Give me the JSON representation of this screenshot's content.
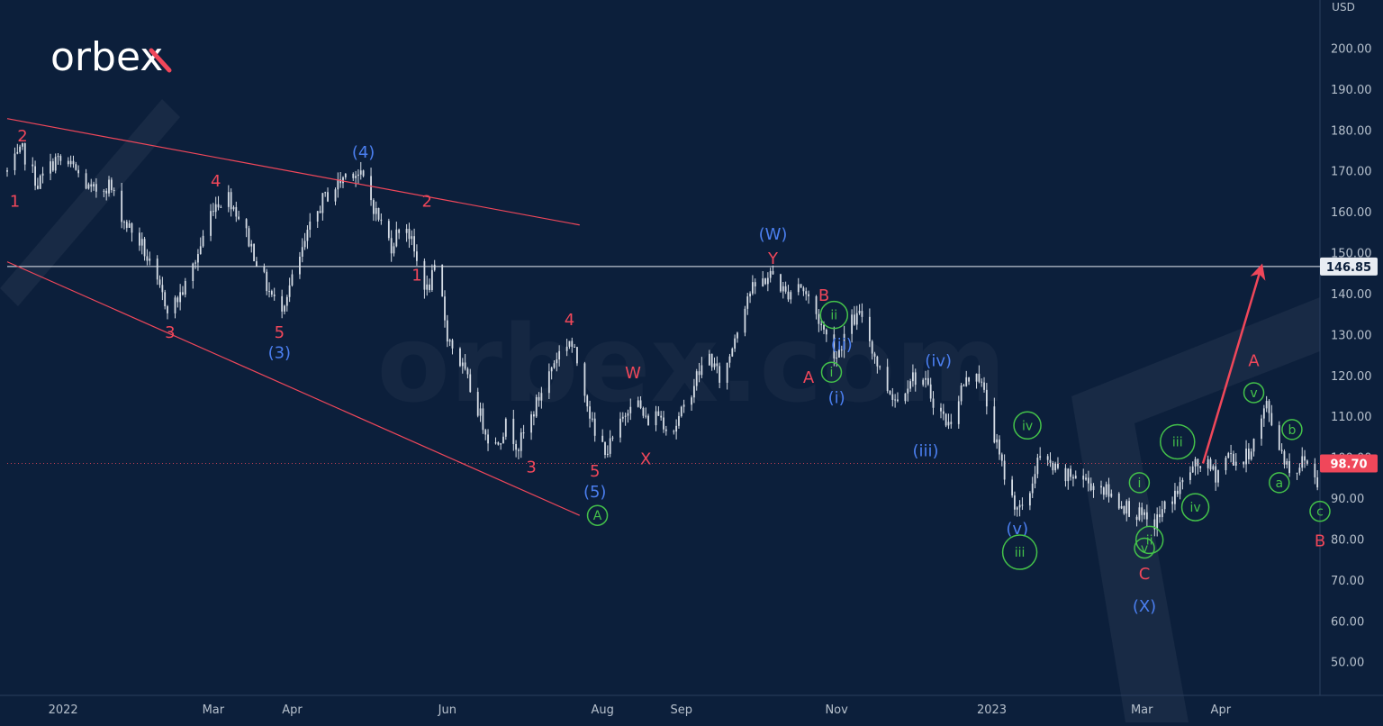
{
  "brand": {
    "logo_text": "orbex",
    "watermark_text": "orbex.com"
  },
  "colors": {
    "background": "#0c1f3b",
    "candle": "#d6dde6",
    "red": "#f0475a",
    "blue": "#4b7ff0",
    "green": "#44c24a",
    "axis_text": "#b6c0cc",
    "resistance": "#e8ecf2",
    "current_price_tag": "#f0475a",
    "resistance_tag": "#e8ecf2"
  },
  "chart_data": {
    "type": "candlestick",
    "currency": "USD",
    "y_axis": {
      "unit": "USD",
      "range": [
        42,
        212
      ],
      "ticks": [
        200,
        190,
        180,
        170,
        160,
        150,
        140,
        130,
        120,
        110,
        100,
        90,
        80,
        70,
        60,
        50
      ]
    },
    "x_axis": {
      "range": [
        "2021-12-10",
        "2023-05-10"
      ],
      "ticks": [
        {
          "date": "2022-01-01",
          "label": "2022"
        },
        {
          "date": "2022-03-01",
          "label": "Mar"
        },
        {
          "date": "2022-04-01",
          "label": "Apr"
        },
        {
          "date": "2022-06-01",
          "label": "Jun"
        },
        {
          "date": "2022-08-01",
          "label": "Aug"
        },
        {
          "date": "2022-09-01",
          "label": "Sep"
        },
        {
          "date": "2022-11-01",
          "label": "Nov"
        },
        {
          "date": "2023-01-01",
          "label": "2023"
        },
        {
          "date": "2023-03-01",
          "label": "Mar"
        },
        {
          "date": "2023-04-01",
          "label": "Apr"
        }
      ]
    },
    "current_price": {
      "value": 98.7,
      "label": "98.70"
    },
    "resistance_level": {
      "value": 146.85,
      "label": "146.85"
    },
    "price_path": [
      [
        "2021-12-10",
        170
      ],
      [
        "2021-12-16",
        175
      ],
      [
        "2021-12-22",
        167
      ],
      [
        "2021-12-29",
        173
      ],
      [
        "2022-01-05",
        171
      ],
      [
        "2022-01-12",
        165
      ],
      [
        "2022-01-19",
        167
      ],
      [
        "2022-01-25",
        158
      ],
      [
        "2022-02-01",
        152
      ],
      [
        "2022-02-07",
        142
      ],
      [
        "2022-02-12",
        136
      ],
      [
        "2022-02-18",
        142
      ],
      [
        "2022-02-23",
        150
      ],
      [
        "2022-03-01",
        162
      ],
      [
        "2022-03-07",
        164
      ],
      [
        "2022-03-12",
        158
      ],
      [
        "2022-03-17",
        150
      ],
      [
        "2022-03-22",
        142
      ],
      [
        "2022-03-27",
        136
      ],
      [
        "2022-04-02",
        145
      ],
      [
        "2022-04-08",
        156
      ],
      [
        "2022-04-13",
        163
      ],
      [
        "2022-04-19",
        167
      ],
      [
        "2022-04-24",
        171
      ],
      [
        "2022-04-29",
        168
      ],
      [
        "2022-05-04",
        160
      ],
      [
        "2022-05-10",
        152
      ],
      [
        "2022-05-15",
        159
      ],
      [
        "2022-05-20",
        148
      ],
      [
        "2022-05-24",
        141
      ],
      [
        "2022-05-28",
        147
      ],
      [
        "2022-06-01",
        130
      ],
      [
        "2022-06-07",
        122
      ],
      [
        "2022-06-13",
        112
      ],
      [
        "2022-06-19",
        102
      ],
      [
        "2022-06-24",
        108
      ],
      [
        "2022-06-29",
        103
      ],
      [
        "2022-07-04",
        110
      ],
      [
        "2022-07-09",
        118
      ],
      [
        "2022-07-14",
        125
      ],
      [
        "2022-07-19",
        129
      ],
      [
        "2022-07-24",
        120
      ],
      [
        "2022-07-29",
        105
      ],
      [
        "2022-08-03",
        102
      ],
      [
        "2022-08-08",
        108
      ],
      [
        "2022-08-13",
        116
      ],
      [
        "2022-08-18",
        109
      ],
      [
        "2022-08-23",
        111
      ],
      [
        "2022-08-28",
        106
      ],
      [
        "2022-09-02",
        112
      ],
      [
        "2022-09-07",
        120
      ],
      [
        "2022-09-12",
        125
      ],
      [
        "2022-09-17",
        118
      ],
      [
        "2022-09-22",
        130
      ],
      [
        "2022-09-27",
        140
      ],
      [
        "2022-10-02",
        143
      ],
      [
        "2022-10-07",
        145
      ],
      [
        "2022-10-12",
        140
      ],
      [
        "2022-10-17",
        143
      ],
      [
        "2022-10-22",
        138
      ],
      [
        "2022-10-27",
        131
      ],
      [
        "2022-11-01",
        125
      ],
      [
        "2022-11-06",
        133
      ],
      [
        "2022-11-11",
        135
      ],
      [
        "2022-11-16",
        125
      ],
      [
        "2022-11-20",
        118
      ],
      [
        "2022-11-25",
        114
      ],
      [
        "2022-11-30",
        120
      ],
      [
        "2022-12-05",
        119
      ],
      [
        "2022-12-10",
        113
      ],
      [
        "2022-12-15",
        108
      ],
      [
        "2022-12-20",
        117
      ],
      [
        "2022-12-26",
        122
      ],
      [
        "2022-12-31",
        111
      ],
      [
        "2023-01-04",
        100
      ],
      [
        "2023-01-09",
        90
      ],
      [
        "2023-01-14",
        86
      ],
      [
        "2023-01-19",
        100
      ],
      [
        "2023-01-24",
        98
      ],
      [
        "2023-01-29",
        95
      ],
      [
        "2023-02-03",
        96
      ],
      [
        "2023-02-08",
        94
      ],
      [
        "2023-02-13",
        93
      ],
      [
        "2023-02-18",
        90
      ],
      [
        "2023-02-23",
        88
      ],
      [
        "2023-02-28",
        86
      ],
      [
        "2023-03-05",
        83
      ],
      [
        "2023-03-10",
        88
      ],
      [
        "2023-03-15",
        92
      ],
      [
        "2023-03-20",
        97
      ],
      [
        "2023-03-25",
        99
      ],
      [
        "2023-03-30",
        96
      ],
      [
        "2023-04-04",
        101
      ],
      [
        "2023-04-09",
        98
      ],
      [
        "2023-04-14",
        104
      ],
      [
        "2023-04-19",
        113
      ],
      [
        "2023-04-24",
        103
      ],
      [
        "2023-04-29",
        96
      ],
      [
        "2023-05-04",
        100
      ],
      [
        "2023-05-09",
        94
      ]
    ],
    "trendlines": [
      {
        "name": "upper-wedge-line",
        "from": [
          "2021-12-10",
          183
        ],
        "to": [
          "2022-07-23",
          157
        ]
      },
      {
        "name": "lower-wedge-line",
        "from": [
          "2021-12-10",
          148
        ],
        "to": [
          "2022-07-23",
          86
        ]
      },
      {
        "name": "forecast-arrow",
        "from": [
          "2023-03-25",
          98.7
        ],
        "to": [
          "2023-04-17",
          146.85
        ],
        "arrow": true
      }
    ],
    "annotations": [
      {
        "text": "2",
        "x": "2021-12-16",
        "y": 179,
        "color": "red"
      },
      {
        "text": "1",
        "x": "2021-12-13",
        "y": 163,
        "color": "red"
      },
      {
        "text": "4",
        "x": "2022-03-02",
        "y": 168,
        "color": "red"
      },
      {
        "text": "3",
        "x": "2022-02-12",
        "y": 131,
        "color": "red"
      },
      {
        "text": "5",
        "x": "2022-03-27",
        "y": 131,
        "color": "red"
      },
      {
        "text": "(3)",
        "x": "2022-03-27",
        "y": 126,
        "color": "blue"
      },
      {
        "text": "(4)",
        "x": "2022-04-29",
        "y": 175,
        "color": "blue"
      },
      {
        "text": "2",
        "x": "2022-05-24",
        "y": 163,
        "color": "red"
      },
      {
        "text": "1",
        "x": "2022-05-20",
        "y": 145,
        "color": "red"
      },
      {
        "text": "4",
        "x": "2022-07-19",
        "y": 134,
        "color": "red"
      },
      {
        "text": "3",
        "x": "2022-07-04",
        "y": 98,
        "color": "red"
      },
      {
        "text": "5",
        "x": "2022-07-29",
        "y": 97,
        "color": "red"
      },
      {
        "text": "(5)",
        "x": "2022-07-29",
        "y": 92,
        "color": "blue"
      },
      {
        "text": "A",
        "x": "2022-07-30",
        "y": 86,
        "color": "green",
        "circled": true
      },
      {
        "text": "W",
        "x": "2022-08-13",
        "y": 121,
        "color": "red"
      },
      {
        "text": "X",
        "x": "2022-08-18",
        "y": 100,
        "color": "red"
      },
      {
        "text": "(W)",
        "x": "2022-10-07",
        "y": 155,
        "color": "blue"
      },
      {
        "text": "Y",
        "x": "2022-10-07",
        "y": 149,
        "color": "red"
      },
      {
        "text": "B",
        "x": "2022-10-27",
        "y": 140,
        "color": "red"
      },
      {
        "text": "ii",
        "x": "2022-10-31",
        "y": 135,
        "color": "green",
        "circled": true
      },
      {
        "text": "(ii)",
        "x": "2022-11-03",
        "y": 128,
        "color": "blue"
      },
      {
        "text": "i",
        "x": "2022-10-30",
        "y": 121,
        "color": "green",
        "circled": true
      },
      {
        "text": "A",
        "x": "2022-10-21",
        "y": 120,
        "color": "red"
      },
      {
        "text": "(i)",
        "x": "2022-11-01",
        "y": 115,
        "color": "blue"
      },
      {
        "text": "(iv)",
        "x": "2022-12-11",
        "y": 124,
        "color": "blue"
      },
      {
        "text": "(iii)",
        "x": "2022-12-06",
        "y": 102,
        "color": "blue"
      },
      {
        "text": "iv",
        "x": "2023-01-15",
        "y": 108,
        "color": "green",
        "circled": true
      },
      {
        "text": "(v)",
        "x": "2023-01-11",
        "y": 83,
        "color": "blue"
      },
      {
        "text": "iii",
        "x": "2023-01-12",
        "y": 77,
        "color": "green",
        "circled": true
      },
      {
        "text": "i",
        "x": "2023-02-28",
        "y": 94,
        "color": "green",
        "circled": true
      },
      {
        "text": "ii",
        "x": "2023-03-04",
        "y": 80,
        "color": "green",
        "circled": true
      },
      {
        "text": "v",
        "x": "2023-03-02",
        "y": 78,
        "color": "green",
        "circled": true
      },
      {
        "text": "C",
        "x": "2023-03-02",
        "y": 72,
        "color": "red"
      },
      {
        "text": "(X)",
        "x": "2023-03-02",
        "y": 64,
        "color": "blue"
      },
      {
        "text": "iii",
        "x": "2023-03-15",
        "y": 104,
        "color": "green",
        "circled": true
      },
      {
        "text": "iv",
        "x": "2023-03-22",
        "y": 88,
        "color": "green",
        "circled": true
      },
      {
        "text": "A",
        "x": "2023-04-14",
        "y": 124,
        "color": "red"
      },
      {
        "text": "v",
        "x": "2023-04-14",
        "y": 116,
        "color": "green",
        "circled": true
      },
      {
        "text": "b",
        "x": "2023-04-29",
        "y": 107,
        "color": "green",
        "circled": true
      },
      {
        "text": "a",
        "x": "2023-04-24",
        "y": 94,
        "color": "green",
        "circled": true
      },
      {
        "text": "c",
        "x": "2023-05-10",
        "y": 87,
        "color": "green",
        "circled": true
      },
      {
        "text": "B",
        "x": "2023-05-10",
        "y": 80,
        "color": "red"
      }
    ]
  }
}
